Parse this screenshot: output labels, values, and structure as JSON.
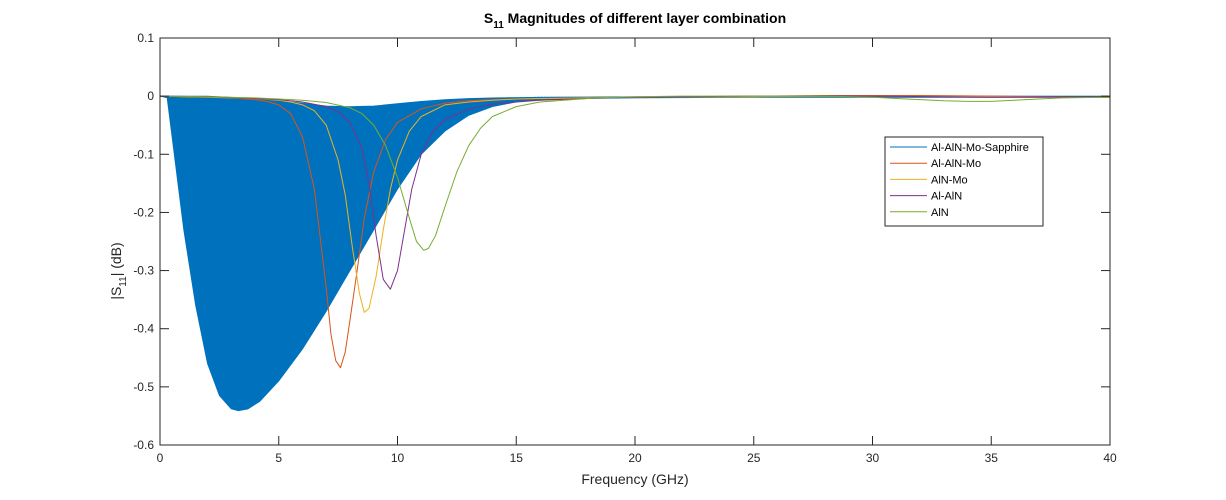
{
  "chart_data": {
    "type": "line",
    "title": {
      "prefix": "S",
      "subscript": "11",
      "suffix": " Magnitudes of different layer combination"
    },
    "xlabel": "Frequency (GHz)",
    "ylabel": {
      "prefix": "|S",
      "subscript": "11",
      "suffix": "| (dB)"
    },
    "xlim": [
      0,
      40
    ],
    "ylim": [
      -0.6,
      0.1
    ],
    "xticks": [
      "0",
      "5",
      "10",
      "15",
      "20",
      "25",
      "30",
      "35",
      "40"
    ],
    "yticks": [
      "0.1",
      "0",
      "-0.1",
      "-0.2",
      "-0.3",
      "-0.4",
      "-0.5",
      "-0.6"
    ],
    "grid": false,
    "legend_position": "right",
    "series": [
      {
        "name": "Al-AlN-Mo-Sapphire",
        "color": "#0072BD",
        "style": "filled-oscillation",
        "lower": [
          [
            0.0,
            0
          ],
          [
            0.3,
            -0.003
          ],
          [
            0.6,
            -0.1
          ],
          [
            1.0,
            -0.23
          ],
          [
            1.5,
            -0.36
          ],
          [
            2.0,
            -0.46
          ],
          [
            2.5,
            -0.515
          ],
          [
            3.0,
            -0.538
          ],
          [
            3.3,
            -0.541
          ],
          [
            3.7,
            -0.538
          ],
          [
            4.2,
            -0.525
          ],
          [
            5.0,
            -0.49
          ],
          [
            6.0,
            -0.435
          ],
          [
            7.0,
            -0.37
          ],
          [
            8.0,
            -0.3
          ],
          [
            9.0,
            -0.23
          ],
          [
            10.0,
            -0.16
          ],
          [
            11.0,
            -0.1
          ],
          [
            12.0,
            -0.06
          ],
          [
            13.0,
            -0.033
          ],
          [
            14.0,
            -0.018
          ],
          [
            15.0,
            -0.01
          ],
          [
            16.0,
            -0.006
          ],
          [
            18.0,
            -0.004
          ],
          [
            20.0,
            -0.003
          ],
          [
            25.0,
            -0.002
          ],
          [
            30.0,
            -0.002
          ],
          [
            35.0,
            -0.002
          ],
          [
            40.0,
            -0.002
          ]
        ],
        "upper": [
          [
            0.0,
            0
          ],
          [
            0.5,
            0
          ],
          [
            2.0,
            0
          ],
          [
            4.0,
            -0.004
          ],
          [
            5.0,
            -0.008
          ],
          [
            6.0,
            -0.012
          ],
          [
            7.0,
            -0.017
          ],
          [
            8.0,
            -0.018
          ],
          [
            9.0,
            -0.017
          ],
          [
            10.0,
            -0.013
          ],
          [
            11.0,
            -0.009
          ],
          [
            12.0,
            -0.006
          ],
          [
            13.0,
            -0.004
          ],
          [
            14.0,
            -0.003
          ],
          [
            16.0,
            -0.002
          ],
          [
            20.0,
            -0.001
          ],
          [
            25.0,
            0.0
          ],
          [
            30.0,
            0.0
          ],
          [
            35.0,
            0.0
          ],
          [
            40.0,
            0.0
          ]
        ]
      },
      {
        "name": "Al-AlN-Mo",
        "color": "#D95319",
        "x": [
          0,
          1,
          2,
          3,
          4,
          4.5,
          5,
          5.5,
          6,
          6.5,
          7,
          7.2,
          7.4,
          7.6,
          7.8,
          8,
          8.3,
          8.6,
          9,
          9.5,
          10,
          11,
          12,
          13,
          14,
          15,
          16,
          18,
          20,
          22,
          25,
          28,
          30,
          32,
          35,
          38,
          40
        ],
        "y": [
          0,
          -0.001,
          -0.002,
          -0.003,
          -0.006,
          -0.009,
          -0.015,
          -0.03,
          -0.07,
          -0.16,
          -0.33,
          -0.41,
          -0.455,
          -0.467,
          -0.44,
          -0.385,
          -0.3,
          -0.21,
          -0.13,
          -0.075,
          -0.045,
          -0.022,
          -0.012,
          -0.008,
          -0.006,
          -0.005,
          -0.004,
          -0.003,
          -0.002,
          -0.001,
          0.0,
          0.001,
          0.001,
          0.001,
          0.0,
          -0.001,
          -0.002
        ]
      },
      {
        "name": "AlN-Mo",
        "color": "#EDB120",
        "x": [
          0,
          1,
          2,
          3,
          4,
          5,
          5.5,
          6,
          6.5,
          7,
          7.5,
          7.8,
          8.1,
          8.4,
          8.6,
          8.8,
          9.1,
          9.4,
          9.7,
          10,
          10.5,
          11,
          12,
          13,
          14,
          15,
          16,
          18,
          20,
          25,
          30,
          35,
          40
        ],
        "y": [
          0,
          -0.001,
          -0.002,
          -0.003,
          -0.004,
          -0.007,
          -0.01,
          -0.015,
          -0.025,
          -0.05,
          -0.11,
          -0.17,
          -0.26,
          -0.34,
          -0.372,
          -0.365,
          -0.31,
          -0.23,
          -0.16,
          -0.11,
          -0.06,
          -0.035,
          -0.015,
          -0.01,
          -0.007,
          -0.005,
          -0.004,
          -0.003,
          -0.002,
          -0.001,
          0.0,
          -0.001,
          -0.002
        ]
      },
      {
        "name": "Al-AlN",
        "color": "#7E2F8E",
        "x": [
          0,
          2,
          4,
          5,
          6,
          7,
          7.5,
          8,
          8.5,
          8.8,
          9.1,
          9.4,
          9.7,
          10.0,
          10.3,
          10.6,
          11,
          11.5,
          12,
          13,
          14,
          15,
          16,
          18,
          20,
          25,
          30,
          35,
          40
        ],
        "y": [
          0,
          -0.001,
          -0.004,
          -0.006,
          -0.01,
          -0.018,
          -0.027,
          -0.045,
          -0.09,
          -0.15,
          -0.24,
          -0.315,
          -0.332,
          -0.3,
          -0.23,
          -0.16,
          -0.1,
          -0.06,
          -0.04,
          -0.022,
          -0.014,
          -0.01,
          -0.007,
          -0.004,
          -0.002,
          0.0,
          0.0,
          -0.002,
          -0.001
        ]
      },
      {
        "name": "AlN",
        "color": "#77AC30",
        "x": [
          0,
          2,
          4,
          5,
          6,
          7,
          8,
          8.5,
          9,
          9.5,
          10,
          10.5,
          10.8,
          11.1,
          11.3,
          11.6,
          12,
          12.5,
          13,
          13.5,
          14,
          15,
          16,
          18,
          20,
          22,
          25,
          28,
          30,
          31,
          32,
          33,
          34,
          35,
          36,
          37,
          38,
          40
        ],
        "y": [
          0,
          -0.001,
          -0.003,
          -0.005,
          -0.007,
          -0.011,
          -0.02,
          -0.03,
          -0.05,
          -0.085,
          -0.14,
          -0.21,
          -0.25,
          -0.265,
          -0.262,
          -0.24,
          -0.19,
          -0.13,
          -0.085,
          -0.055,
          -0.035,
          -0.018,
          -0.01,
          -0.004,
          -0.001,
          0.0,
          0.0,
          0.0,
          -0.002,
          -0.004,
          -0.006,
          -0.008,
          -0.009,
          -0.009,
          -0.007,
          -0.005,
          -0.003,
          -0.002
        ]
      }
    ]
  }
}
